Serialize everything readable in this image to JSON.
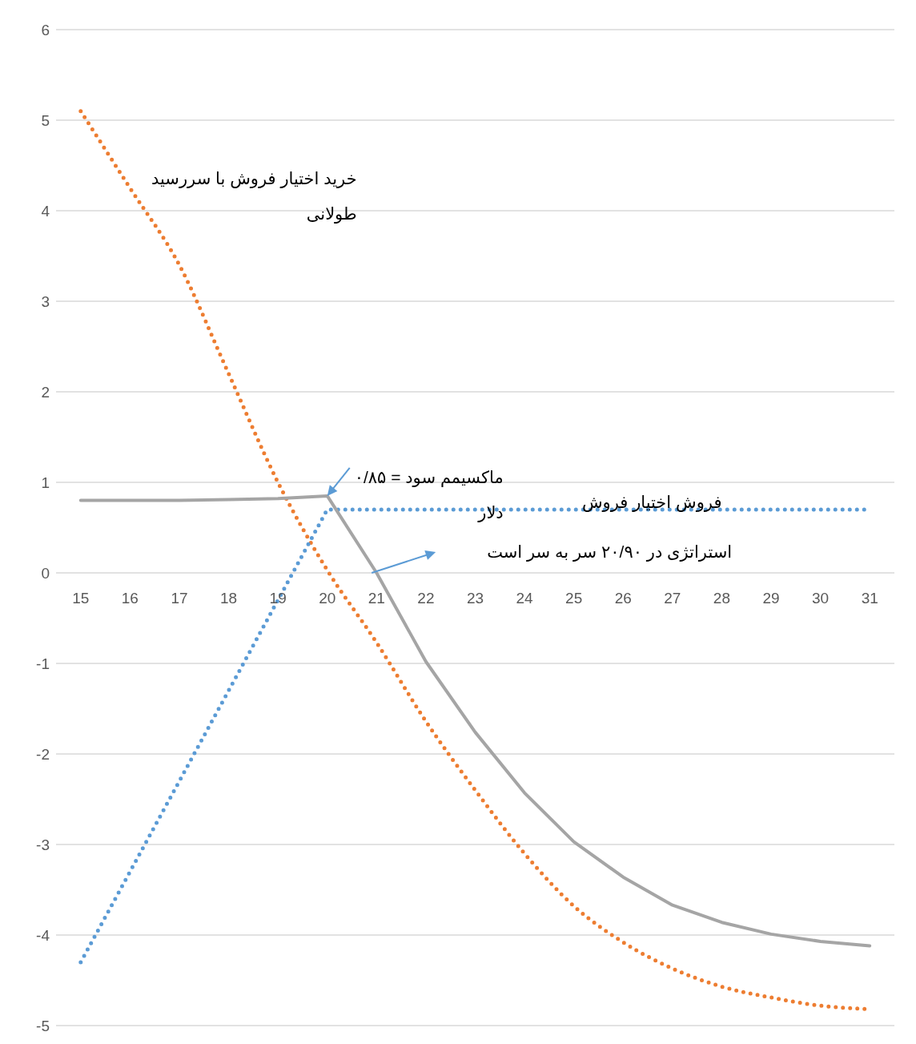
{
  "chart_data": {
    "type": "line",
    "x": [
      15,
      16,
      17,
      18,
      19,
      20,
      21,
      22,
      23,
      24,
      25,
      26,
      27,
      28,
      29,
      30,
      31
    ],
    "series": [
      {
        "name": "خرید اختیار فروش با سررسید طولانی",
        "color": "#ed7d31",
        "line_style": "dotted",
        "values": [
          5.1,
          4.25,
          3.4,
          2.2,
          1.0,
          0.03,
          -0.77,
          -1.64,
          -2.4,
          -3.1,
          -3.68,
          -4.08,
          -4.37,
          -4.57,
          -4.69,
          -4.78,
          -4.82
        ]
      },
      {
        "name": "فروش اختیار فروش",
        "color": "#5b9bd5",
        "line_style": "dotted",
        "values": [
          -4.3,
          -3.3,
          -2.3,
          -1.3,
          -0.3,
          0.7,
          0.7,
          0.7,
          0.7,
          0.7,
          0.7,
          0.7,
          0.7,
          0.7,
          0.7,
          0.7,
          0.7
        ]
      },
      {
        "color": "#a5a5a5",
        "line_style": "solid",
        "values": [
          0.8,
          0.8,
          0.8,
          0.81,
          0.82,
          0.85,
          0.0,
          -0.98,
          -1.76,
          -2.43,
          -2.97,
          -3.36,
          -3.67,
          -3.86,
          -3.99,
          -4.07,
          -4.12
        ]
      }
    ],
    "xlim": [
      14.5,
      31.5
    ],
    "xticks": [
      15,
      16,
      17,
      18,
      19,
      20,
      21,
      22,
      23,
      24,
      25,
      26,
      27,
      28,
      29,
      30,
      31
    ],
    "ylim": [
      -5,
      6
    ],
    "yticks": [
      -5,
      -4,
      -3,
      -2,
      -1,
      0,
      1,
      2,
      3,
      4,
      5,
      6
    ],
    "grid": "y",
    "marker": "none",
    "annotations": [
      {
        "text": "ماکسیمم سود = ۰/۸۵ دلار",
        "x": 20,
        "y": 0.85
      },
      "استراتژی در ۲۰/۹۰  سر به سر است"
    ]
  }
}
